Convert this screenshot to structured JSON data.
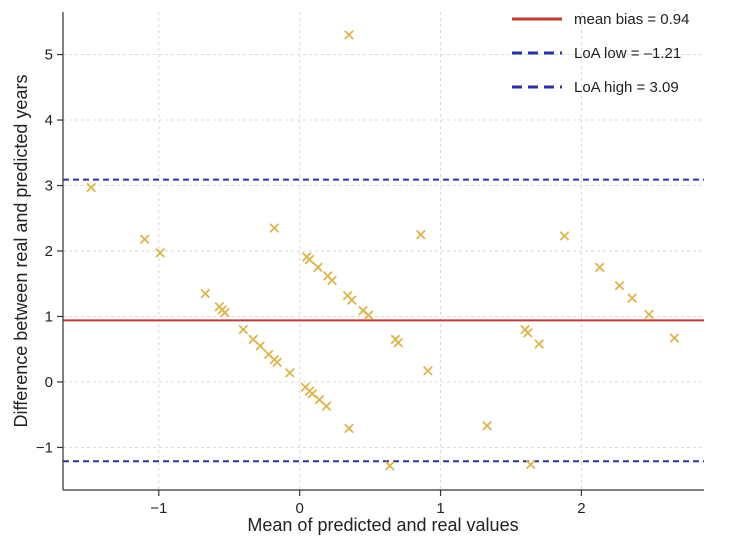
{
  "chart_data": {
    "type": "scatter",
    "xlabel": "Mean of predicted and real values",
    "ylabel": "Difference between real and predicted years",
    "xlim": [
      -1.68,
      2.87
    ],
    "ylim": [
      -1.65,
      5.65
    ],
    "xticks": [
      -1,
      0,
      1,
      2
    ],
    "yticks": [
      -1,
      0,
      1,
      2,
      3,
      4,
      5
    ],
    "xtick_labels": [
      "−1",
      "0",
      "1",
      "2"
    ],
    "ytick_labels": [
      "−1",
      "0",
      "1",
      "2",
      "3",
      "4",
      "5"
    ],
    "grid": true,
    "legend_position": "top-right",
    "marker": "x",
    "colors": {
      "points": "#e0b44a",
      "mean": "#c43a33",
      "loa": "#2b32a6",
      "grid": "#d9d9d9"
    },
    "points": [
      {
        "x": -1.48,
        "y": 2.97
      },
      {
        "x": -1.1,
        "y": 2.18
      },
      {
        "x": -0.99,
        "y": 1.97
      },
      {
        "x": -0.67,
        "y": 1.35
      },
      {
        "x": -0.57,
        "y": 1.15
      },
      {
        "x": -0.55,
        "y": 1.1
      },
      {
        "x": -0.53,
        "y": 1.06
      },
      {
        "x": -0.4,
        "y": 0.8
      },
      {
        "x": -0.33,
        "y": 0.65
      },
      {
        "x": -0.28,
        "y": 0.55
      },
      {
        "x": -0.22,
        "y": 0.42
      },
      {
        "x": -0.18,
        "y": 0.34
      },
      {
        "x": -0.16,
        "y": 0.3
      },
      {
        "x": -0.07,
        "y": 0.14
      },
      {
        "x": -0.18,
        "y": 2.35
      },
      {
        "x": 0.04,
        "y": -0.08
      },
      {
        "x": 0.07,
        "y": -0.14
      },
      {
        "x": 0.09,
        "y": -0.18
      },
      {
        "x": 0.14,
        "y": -0.27
      },
      {
        "x": 0.19,
        "y": -0.37
      },
      {
        "x": 0.35,
        "y": -0.71
      },
      {
        "x": 0.05,
        "y": 1.91
      },
      {
        "x": 0.07,
        "y": 1.87
      },
      {
        "x": 0.13,
        "y": 1.75
      },
      {
        "x": 0.2,
        "y": 1.62
      },
      {
        "x": 0.23,
        "y": 1.55
      },
      {
        "x": 0.34,
        "y": 1.32
      },
      {
        "x": 0.37,
        "y": 1.25
      },
      {
        "x": 0.45,
        "y": 1.09
      },
      {
        "x": 0.49,
        "y": 1.02
      },
      {
        "x": 0.35,
        "y": 5.3
      },
      {
        "x": 0.64,
        "y": -1.28
      },
      {
        "x": 0.68,
        "y": 0.65
      },
      {
        "x": 0.7,
        "y": 0.6
      },
      {
        "x": 0.86,
        "y": 2.25
      },
      {
        "x": 0.91,
        "y": 0.17
      },
      {
        "x": 1.33,
        "y": -0.67
      },
      {
        "x": 1.6,
        "y": 0.8
      },
      {
        "x": 1.62,
        "y": 0.75
      },
      {
        "x": 1.64,
        "y": -1.26
      },
      {
        "x": 1.7,
        "y": 0.58
      },
      {
        "x": 1.88,
        "y": 2.23
      },
      {
        "x": 2.13,
        "y": 1.75
      },
      {
        "x": 2.27,
        "y": 1.47
      },
      {
        "x": 2.36,
        "y": 1.28
      },
      {
        "x": 2.48,
        "y": 1.03
      },
      {
        "x": 2.66,
        "y": 0.67
      }
    ],
    "lines": [
      {
        "label": "mean bias = 0.94",
        "y": 0.94,
        "style": "solid",
        "color": "#c43a33"
      },
      {
        "label": "LoA low = –1.21",
        "y": -1.21,
        "style": "dashed",
        "color": "#2b32a6"
      },
      {
        "label": "LoA high = 3.09",
        "y": 3.09,
        "style": "dashed",
        "color": "#2b32a6"
      }
    ]
  }
}
